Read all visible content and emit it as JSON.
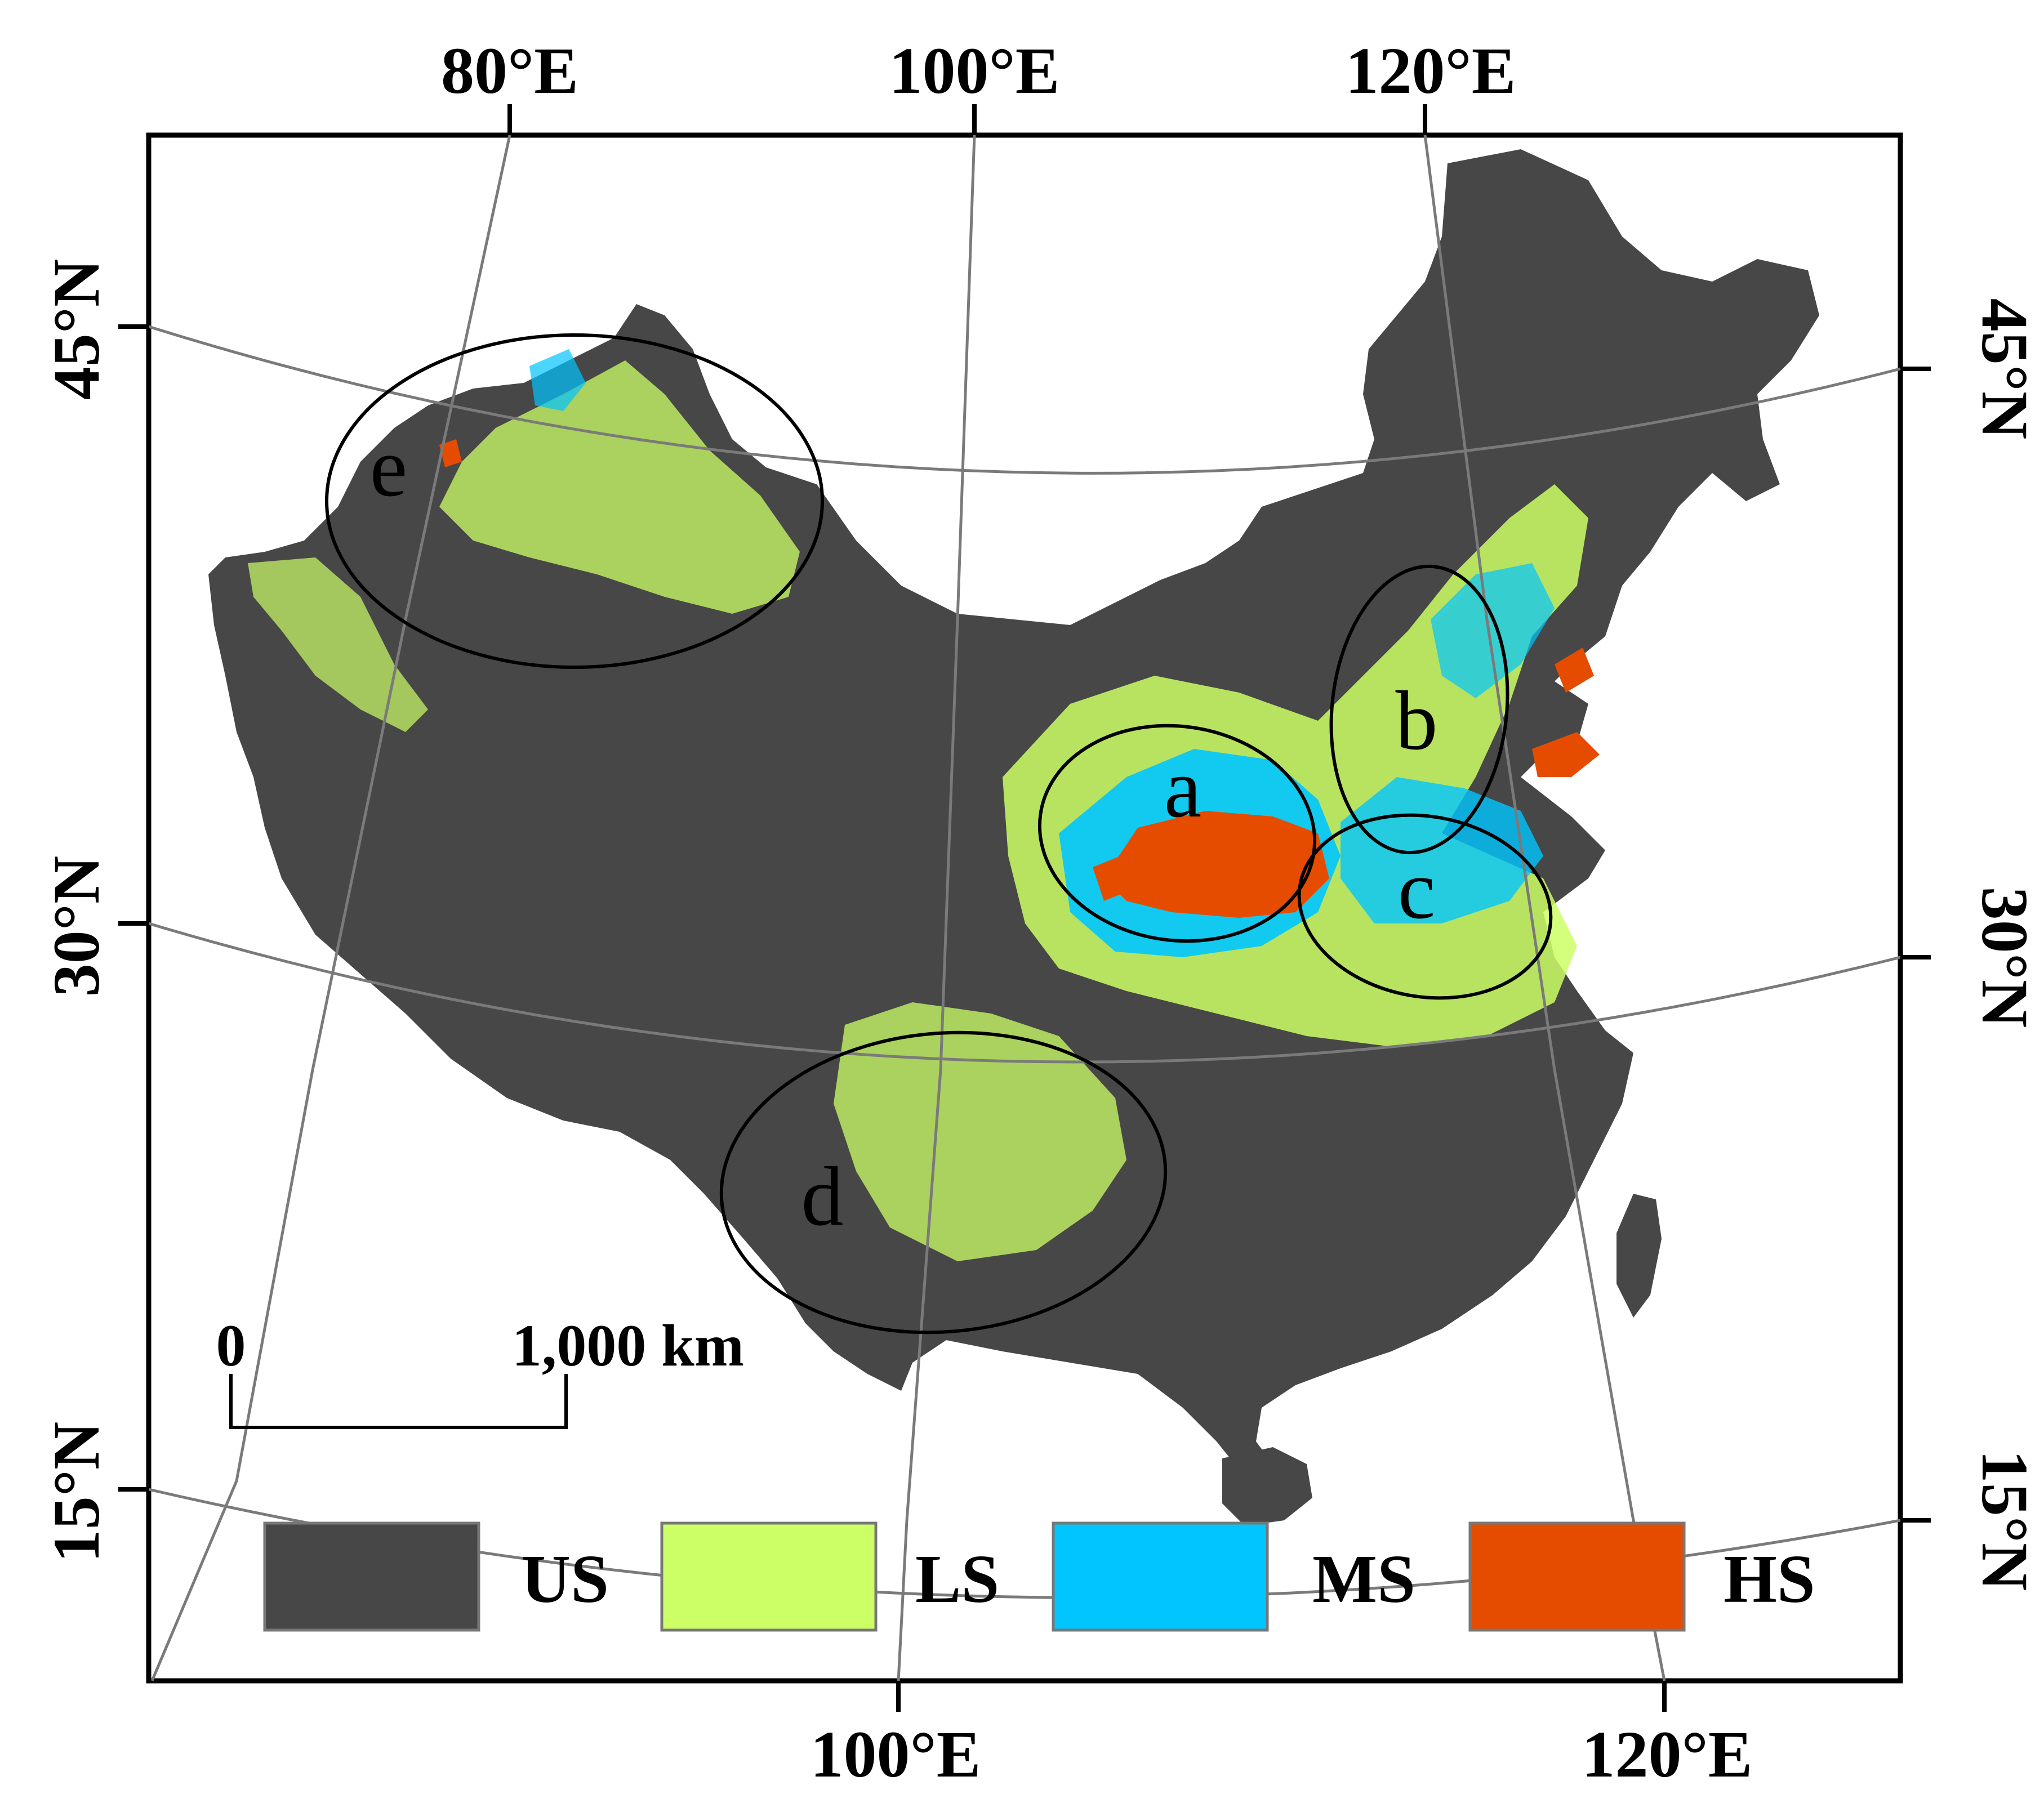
{
  "graticule": {
    "top_lon_labels": [
      "80°E",
      "100°E",
      "120°E"
    ],
    "bottom_lon_labels": [
      "100°E",
      "120°E"
    ],
    "left_lat_labels": [
      "45°N",
      "30°N",
      "15°N"
    ],
    "right_lat_labels": [
      "45°N",
      "30°N",
      "15°N"
    ]
  },
  "regions": [
    "a",
    "b",
    "c",
    "d",
    "e"
  ],
  "scale_bar": {
    "start": "0",
    "end": "1,000 km"
  },
  "legend": [
    {
      "label": "US",
      "color": "#474747"
    },
    {
      "label": "LS",
      "color": "#ccff66"
    },
    {
      "label": "MS",
      "color": "#00c5ff"
    },
    {
      "label": "HS",
      "color": "#e64c00"
    }
  ],
  "colors": {
    "land": "#474747",
    "frame": "#000000",
    "grid": "#7a7a7a"
  }
}
